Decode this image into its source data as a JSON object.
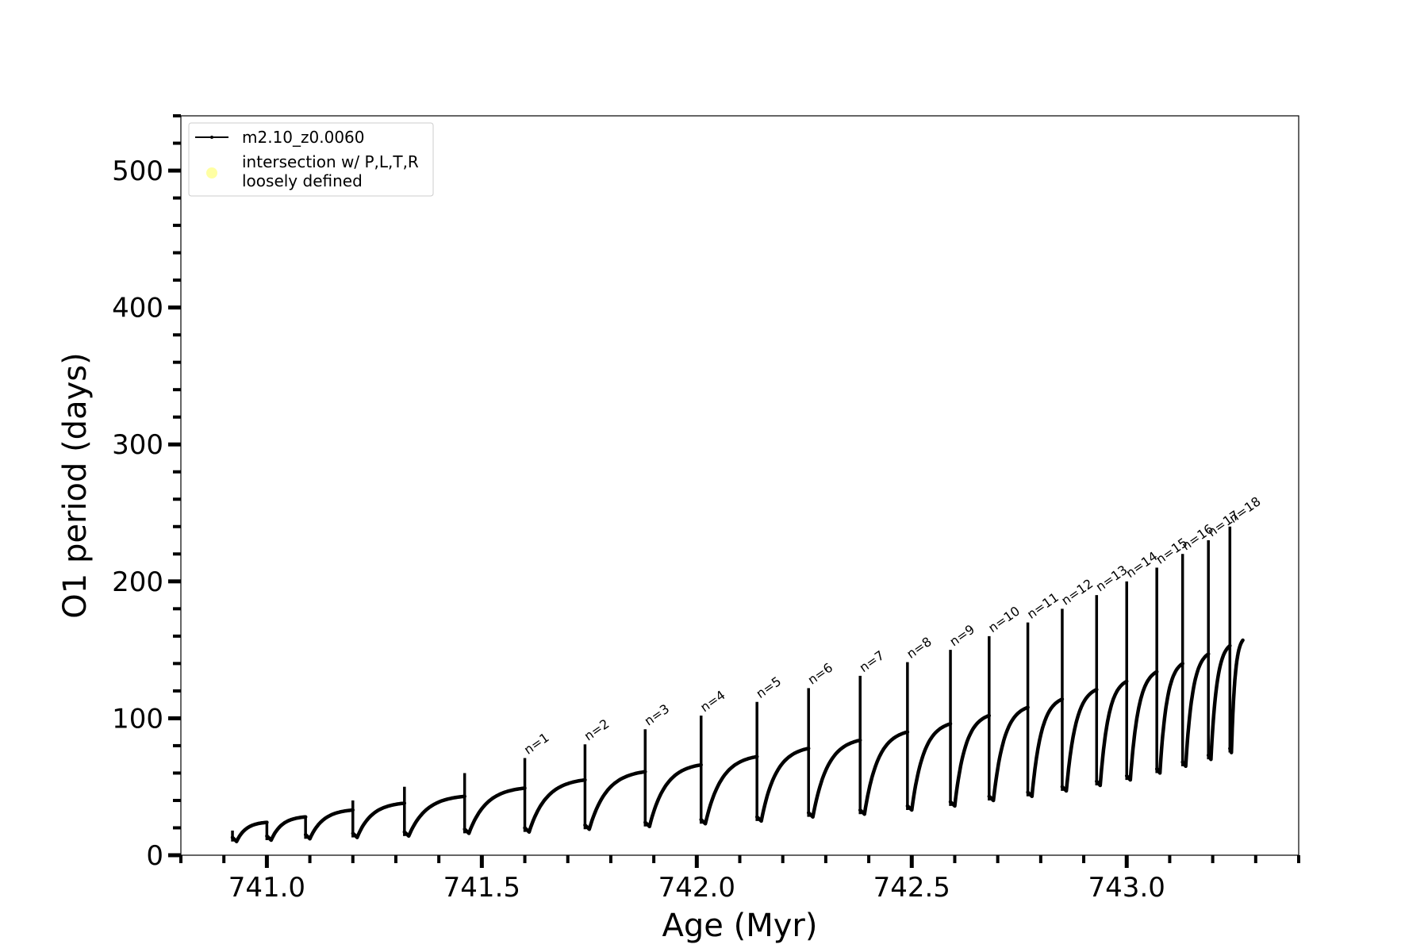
{
  "chart_data": {
    "type": "line",
    "xlabel": "Age (Myr)",
    "ylabel": "O1 period (days)",
    "xlim": [
      740.8,
      743.4
    ],
    "ylim": [
      0,
      540
    ],
    "x_ticks": [
      741.0,
      741.5,
      742.0,
      742.5,
      743.0
    ],
    "x_tick_labels": [
      "741.0",
      "741.5",
      "742.0",
      "742.5",
      "743.0"
    ],
    "x_minor_step": 0.1,
    "y_ticks": [
      0,
      100,
      200,
      300,
      400,
      500
    ],
    "y_tick_labels": [
      "0",
      "100",
      "200",
      "300",
      "400",
      "500"
    ],
    "y_minor_step": 20,
    "grid": false,
    "legend_position": "top-left",
    "legend": [
      {
        "label": "m2.10_z0.0060",
        "marker": "line",
        "color": "#000000"
      },
      {
        "label_lines": [
          "intersection w/ P,L,T,R",
          "loosely defined"
        ],
        "marker": "dot",
        "color": "#ffff99"
      }
    ],
    "series": [
      {
        "name": "m2.10_z0.0060",
        "color": "#000000",
        "x_start": 740.92,
        "x_end": 743.27,
        "end_value": 157,
        "cycles": [
          {
            "pulse_age": 740.92,
            "min": 10,
            "peak": 18,
            "end_value": 24
          },
          {
            "pulse_age": 741.0,
            "min": 11,
            "peak": 25,
            "end_value": 28
          },
          {
            "pulse_age": 741.09,
            "min": 12,
            "peak": 28,
            "end_value": 33
          },
          {
            "pulse_age": 741.2,
            "min": 13,
            "peak": 40,
            "end_value": 38
          },
          {
            "pulse_age": 741.32,
            "min": 14,
            "peak": 50,
            "end_value": 43
          },
          {
            "pulse_age": 741.46,
            "min": 16,
            "peak": 60,
            "end_value": 49
          },
          {
            "pulse_age": 741.6,
            "label": "n=1",
            "min": 17,
            "peak": 71,
            "end_value": 55
          },
          {
            "pulse_age": 741.74,
            "label": "n=2",
            "min": 19,
            "peak": 81,
            "end_value": 61
          },
          {
            "pulse_age": 741.88,
            "label": "n=3",
            "min": 21,
            "peak": 92,
            "end_value": 66
          },
          {
            "pulse_age": 742.01,
            "label": "n=4",
            "min": 23,
            "peak": 102,
            "end_value": 72
          },
          {
            "pulse_age": 742.14,
            "label": "n=5",
            "min": 25,
            "peak": 112,
            "end_value": 78
          },
          {
            "pulse_age": 742.26,
            "label": "n=6",
            "min": 28,
            "peak": 122,
            "end_value": 84
          },
          {
            "pulse_age": 742.38,
            "label": "n=7",
            "min": 30,
            "peak": 131,
            "end_value": 90
          },
          {
            "pulse_age": 742.49,
            "label": "n=8",
            "min": 33,
            "peak": 141,
            "end_value": 96
          },
          {
            "pulse_age": 742.59,
            "label": "n=9",
            "min": 36,
            "peak": 150,
            "end_value": 102
          },
          {
            "pulse_age": 742.68,
            "label": "n=10",
            "min": 40,
            "peak": 160,
            "end_value": 108
          },
          {
            "pulse_age": 742.77,
            "label": "n=11",
            "min": 43,
            "peak": 170,
            "end_value": 114
          },
          {
            "pulse_age": 742.85,
            "label": "n=12",
            "min": 47,
            "peak": 180,
            "end_value": 121
          },
          {
            "pulse_age": 742.93,
            "label": "n=13",
            "min": 51,
            "peak": 190,
            "end_value": 127
          },
          {
            "pulse_age": 743.0,
            "label": "n=14",
            "min": 55,
            "peak": 200,
            "end_value": 134
          },
          {
            "pulse_age": 743.07,
            "label": "n=15",
            "min": 60,
            "peak": 210,
            "end_value": 140
          },
          {
            "pulse_age": 743.13,
            "label": "n=16",
            "min": 65,
            "peak": 220,
            "end_value": 147
          },
          {
            "pulse_age": 743.19,
            "label": "n=17",
            "min": 70,
            "peak": 230,
            "end_value": 153
          },
          {
            "pulse_age": 743.24,
            "label": "n=18",
            "min": 75,
            "peak": 240
          }
        ]
      }
    ]
  }
}
